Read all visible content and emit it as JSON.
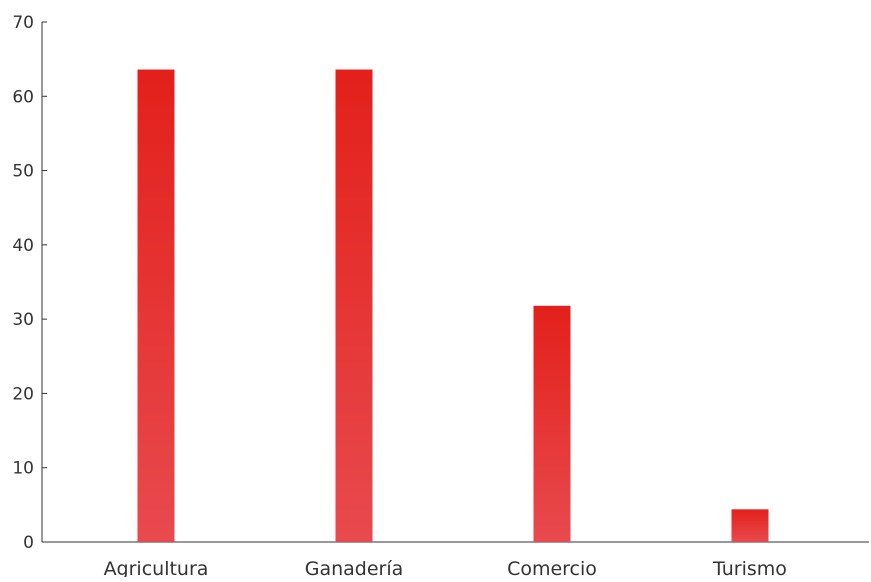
{
  "chart_data": {
    "type": "bar",
    "title": "",
    "xlabel": "",
    "ylabel": "",
    "categories": [
      "Agricultura",
      "Ganadería",
      "Comercio",
      "Turismo"
    ],
    "values": [
      63.6,
      63.6,
      31.8,
      4.4
    ],
    "ylim": [
      0,
      70
    ],
    "yticks": [
      0,
      10,
      20,
      30,
      40,
      50,
      60,
      70
    ],
    "grid": false,
    "legend": "none",
    "colors": {
      "bar_top": "#E3201B",
      "bar_bottom": "#E84A4E",
      "axis": "#333333",
      "text": "#333333"
    }
  }
}
